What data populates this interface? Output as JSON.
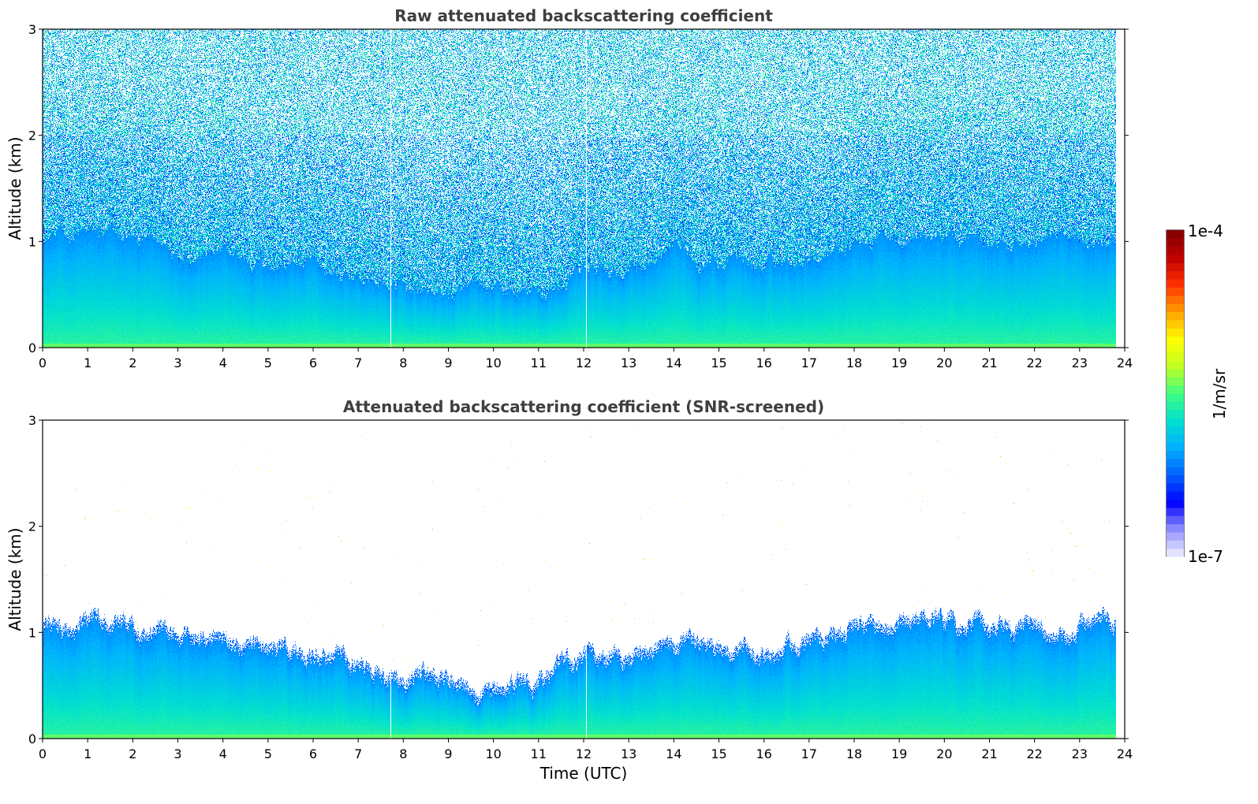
{
  "chart_data": [
    {
      "type": "heatmap",
      "title": "Raw attenuated backscattering coefficient",
      "xlabel": "",
      "ylabel": "Altitude (km)",
      "xlim": [
        0,
        24
      ],
      "ylim": [
        0,
        3
      ],
      "xticks": [
        "0",
        "1",
        "2",
        "3",
        "4",
        "5",
        "6",
        "7",
        "8",
        "9",
        "10",
        "11",
        "12",
        "13",
        "14",
        "15",
        "16",
        "17",
        "18",
        "19",
        "20",
        "21",
        "22",
        "23",
        "24"
      ],
      "yticks": [
        "0",
        "1",
        "2",
        "3"
      ],
      "data_end_hour": 23.8,
      "gaps_hours": [
        7.72,
        12.05
      ],
      "screened": false,
      "top_of_dense_layer_km": [
        [
          0,
          1.05
        ],
        [
          1,
          1.05
        ],
        [
          2,
          1.0
        ],
        [
          3,
          0.95
        ],
        [
          4,
          0.85
        ],
        [
          5,
          0.8
        ],
        [
          6,
          0.75
        ],
        [
          7,
          0.65
        ],
        [
          8,
          0.55
        ],
        [
          9,
          0.5
        ],
        [
          10,
          0.5
        ],
        [
          11,
          0.48
        ],
        [
          12,
          0.7
        ],
        [
          13,
          0.75
        ],
        [
          14,
          0.85
        ],
        [
          15,
          0.85
        ],
        [
          16,
          0.75
        ],
        [
          17,
          0.9
        ],
        [
          18,
          1.0
        ],
        [
          19,
          1.1
        ],
        [
          20,
          1.05
        ],
        [
          21,
          0.95
        ],
        [
          22,
          1.0
        ],
        [
          23,
          1.05
        ],
        [
          23.8,
          1.05
        ]
      ]
    },
    {
      "type": "heatmap",
      "title": "Attenuated backscattering coefficient (SNR-screened)",
      "xlabel": "Time (UTC)",
      "ylabel": "Altitude (km)",
      "xlim": [
        0,
        24
      ],
      "ylim": [
        0,
        3
      ],
      "xticks": [
        "0",
        "1",
        "2",
        "3",
        "4",
        "5",
        "6",
        "7",
        "8",
        "9",
        "10",
        "11",
        "12",
        "13",
        "14",
        "15",
        "16",
        "17",
        "18",
        "19",
        "20",
        "21",
        "22",
        "23",
        "24"
      ],
      "yticks": [
        "0",
        "1",
        "2",
        "3"
      ],
      "data_end_hour": 23.8,
      "gaps_hours": [
        7.72,
        12.05
      ],
      "screened": true,
      "top_of_dense_layer_km": [
        [
          0,
          1.05
        ],
        [
          1,
          1.05
        ],
        [
          2,
          1.0
        ],
        [
          3,
          0.95
        ],
        [
          4,
          0.85
        ],
        [
          5,
          0.8
        ],
        [
          6,
          0.75
        ],
        [
          7,
          0.65
        ],
        [
          8,
          0.55
        ],
        [
          9,
          0.5
        ],
        [
          10,
          0.5
        ],
        [
          11,
          0.48
        ],
        [
          12,
          0.7
        ],
        [
          13,
          0.75
        ],
        [
          14,
          0.85
        ],
        [
          15,
          0.85
        ],
        [
          16,
          0.75
        ],
        [
          17,
          0.9
        ],
        [
          18,
          1.0
        ],
        [
          19,
          1.1
        ],
        [
          20,
          1.05
        ],
        [
          21,
          0.95
        ],
        [
          22,
          1.0
        ],
        [
          23,
          1.05
        ],
        [
          23.8,
          1.05
        ]
      ]
    }
  ],
  "colorbar": {
    "label": "1/m/sr",
    "max_label": "1e-4",
    "min_label": "1e-7",
    "scale": "log",
    "colormap": [
      "#f0f0ff",
      "#9090ff",
      "#0000ff",
      "#0060ff",
      "#00b0ff",
      "#00e0d0",
      "#40ff80",
      "#c0ff20",
      "#ffff00",
      "#ffa000",
      "#ff3000",
      "#c00000",
      "#800000"
    ]
  }
}
